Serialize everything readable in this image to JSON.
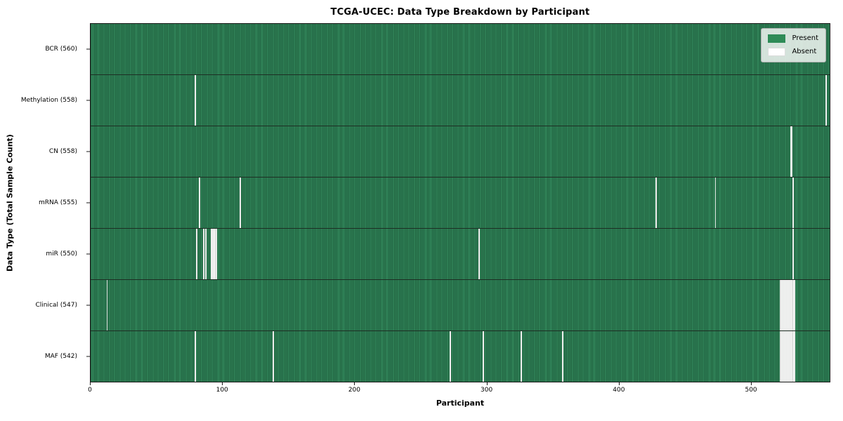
{
  "chart_data": {
    "type": "heatmap",
    "title": "TCGA-UCEC: Data Type Breakdown by Participant",
    "xlabel": "Participant",
    "ylabel": "Data Type (Total Sample Count)",
    "n_participants": 560,
    "x_ticks": [
      0,
      100,
      200,
      300,
      400,
      500
    ],
    "grid": false,
    "legend_position": "upper right",
    "legend": [
      {
        "label": "Present",
        "color": "#2e8b57"
      },
      {
        "label": "Absent",
        "color": "#ffffff"
      }
    ],
    "colors": {
      "present_fill": "#33895c",
      "present_edge": "#1e5c3b",
      "absent_fill": "#ffffff",
      "absent_edge": "#b9beba",
      "row_separator": "#1d2e23",
      "spine": "#1a1a1a"
    },
    "rows": [
      {
        "label": "BCR (560)",
        "present_count": 560,
        "absent_participants": []
      },
      {
        "label": "Methylation (558)",
        "present_count": 558,
        "absent_participants": [
          79,
          557
        ]
      },
      {
        "label": "CN (558)",
        "present_count": 558,
        "absent_participants": [
          530,
          531
        ]
      },
      {
        "label": "mRNA (555)",
        "present_count": 555,
        "absent_participants": [
          82,
          113,
          428,
          473,
          532
        ]
      },
      {
        "label": "miR (550)",
        "present_count": 550,
        "absent_participants": [
          80,
          85,
          87,
          91,
          92,
          93,
          94,
          95,
          294,
          532
        ]
      },
      {
        "label": "Clinical (547)",
        "present_count": 547,
        "absent_participants": [
          12,
          522,
          523,
          524,
          525,
          526,
          527,
          528,
          529,
          530,
          531,
          532,
          533
        ]
      },
      {
        "label": "MAF (542)",
        "present_count": 542,
        "absent_participants": [
          79,
          138,
          272,
          297,
          326,
          357,
          522,
          523,
          524,
          525,
          526,
          527,
          528,
          529,
          530,
          531,
          532,
          533
        ]
      }
    ]
  }
}
